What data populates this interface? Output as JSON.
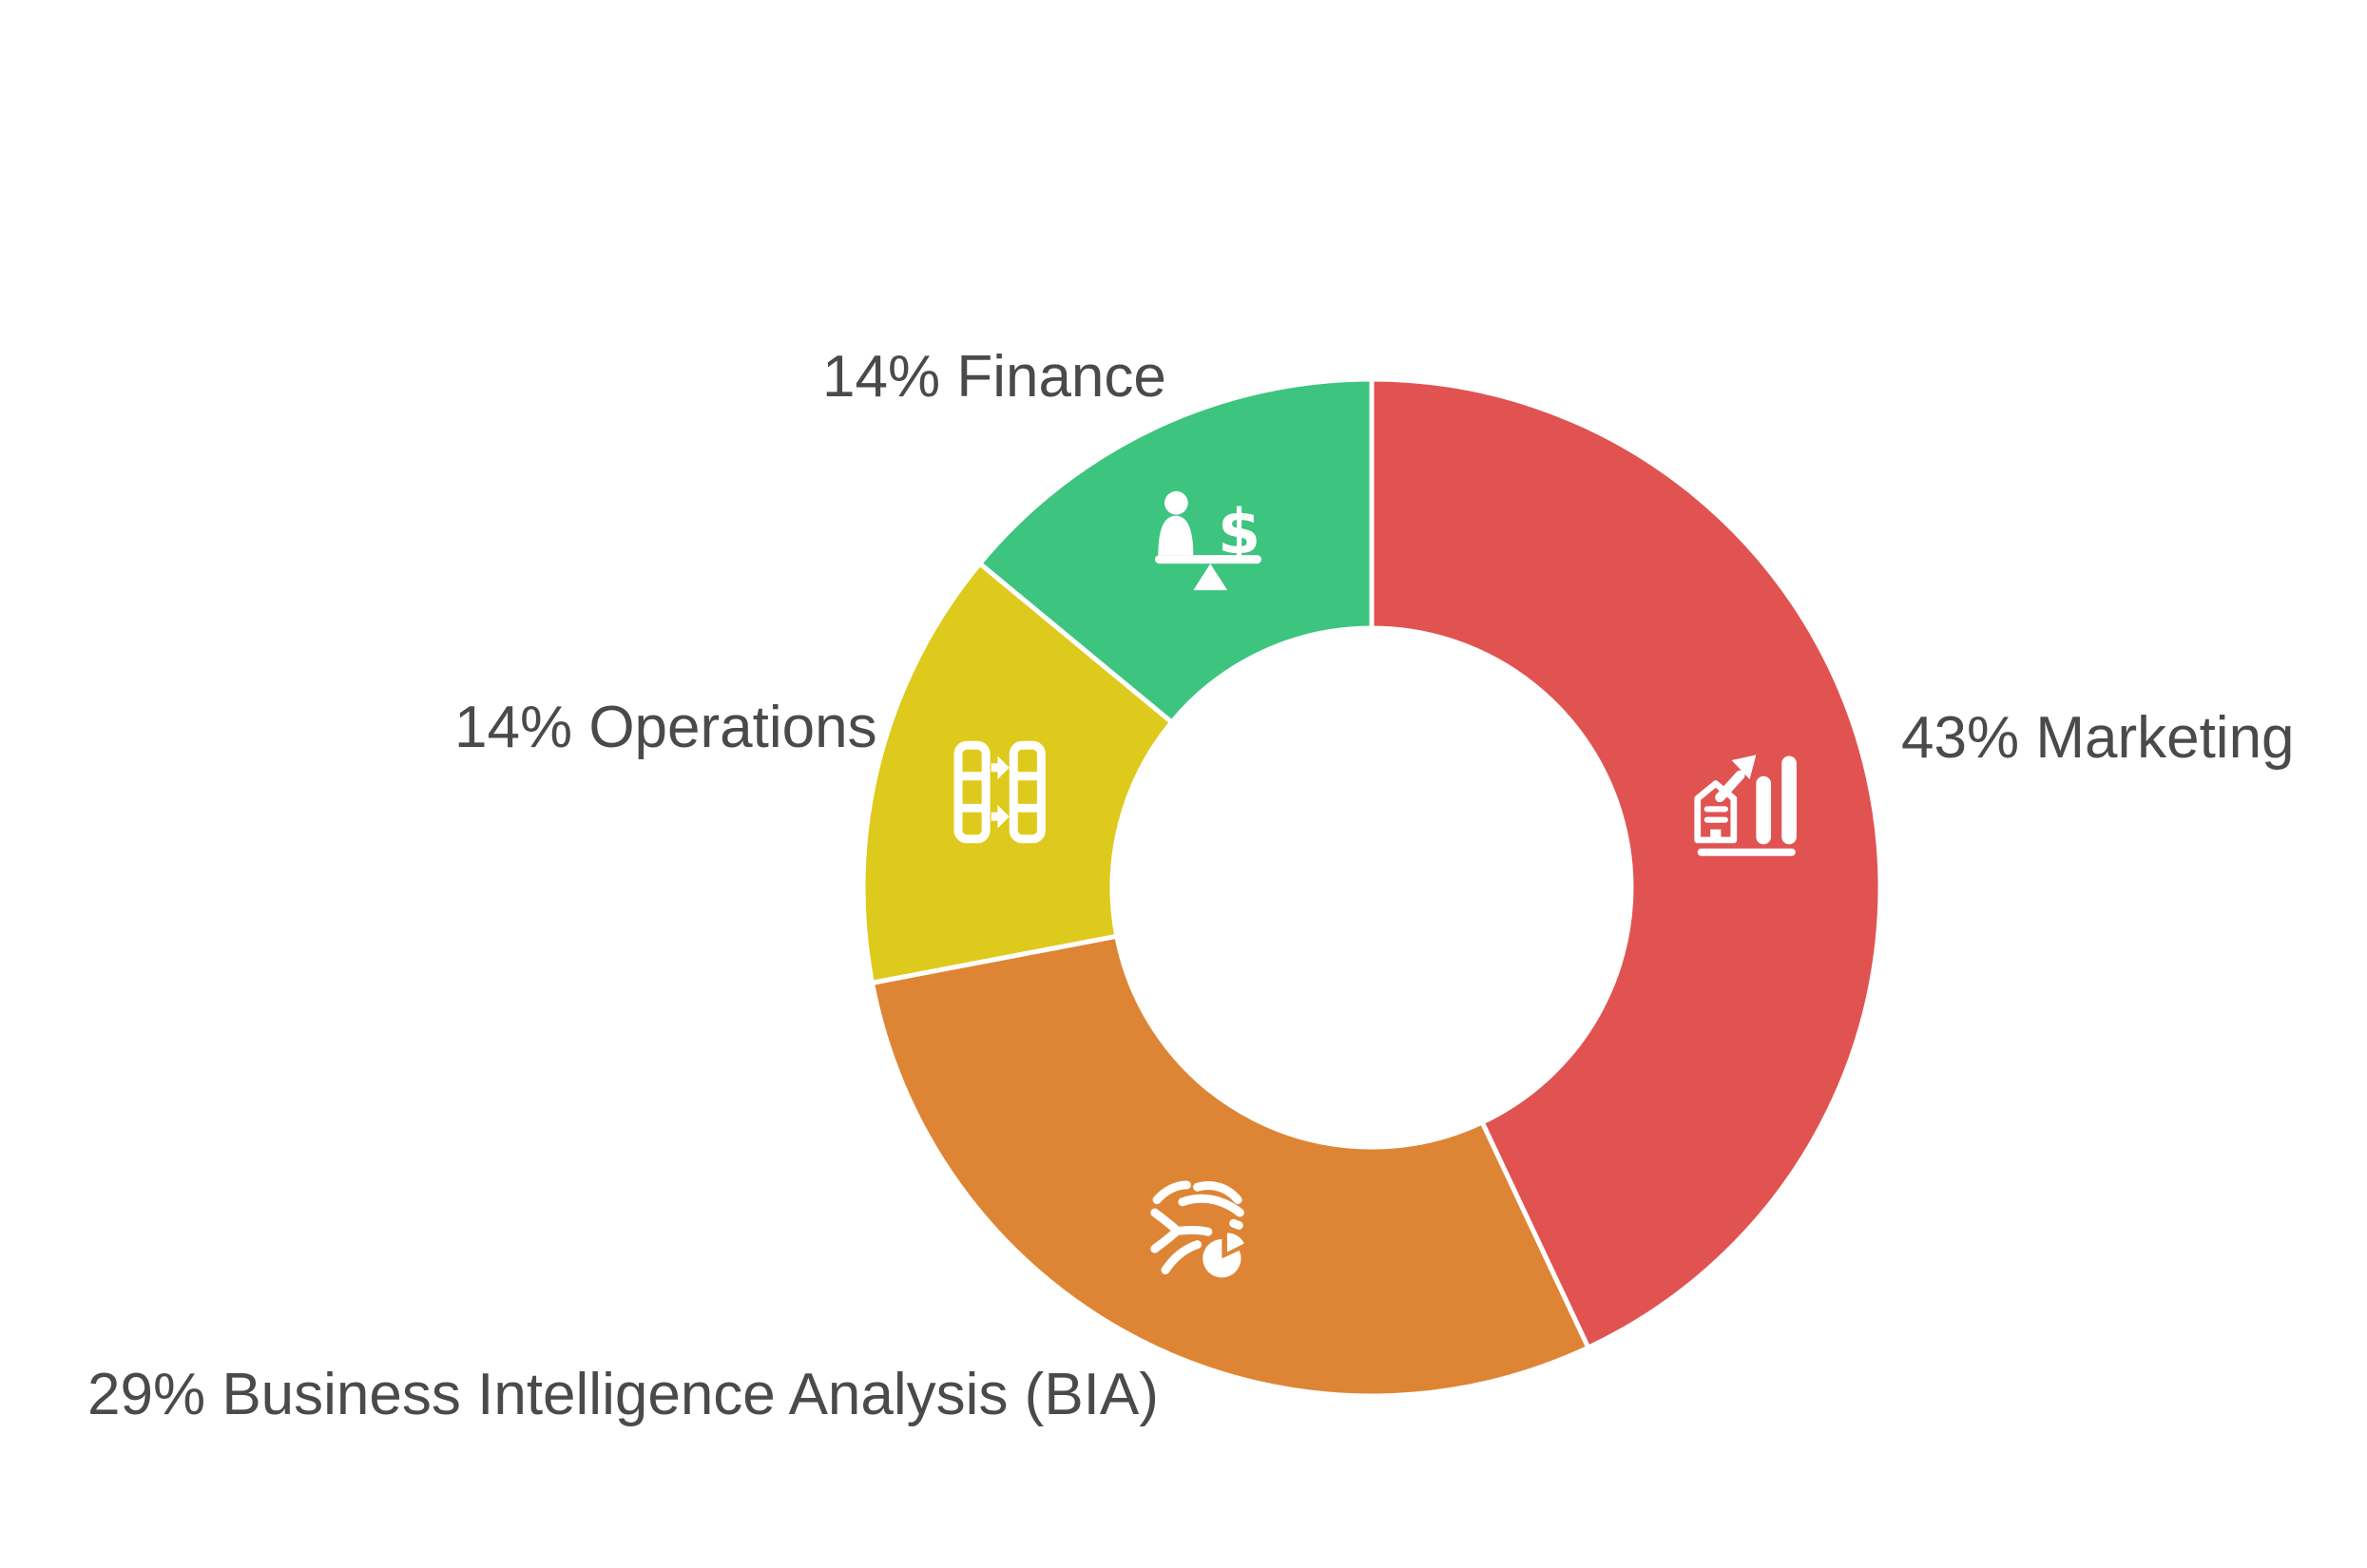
{
  "page": {
    "background_color": "#ffffff",
    "text_color": "#4a4a4a"
  },
  "chart_data": {
    "type": "pie",
    "variant": "donut",
    "direction": "clockwise",
    "start_angle_deg": 0,
    "donut_hole_ratio": 0.51,
    "grid": false,
    "legend_position": "outside-labels",
    "unit": "%",
    "categories": [
      "Marketing",
      "Business Intelligence Analysis (BIA)",
      "Operations",
      "Finance"
    ],
    "values": [
      43,
      29,
      14,
      14
    ],
    "segments": [
      {
        "name": "Marketing",
        "value": 43,
        "label": "43% Marketing",
        "color": "#e05351",
        "icon": "bar-chart-growth-icon"
      },
      {
        "name": "Business Intelligence Analysis (BIA)",
        "value": 29,
        "label": "29% Business Intelligence Analysis (BIA)",
        "color": "#de8535",
        "icon": "data-flow-pie-icon"
      },
      {
        "name": "Operations",
        "value": 14,
        "label": "14% Operations",
        "color": "#deca1d",
        "icon": "data-transfer-columns-icon"
      },
      {
        "name": "Finance",
        "value": 14,
        "label": "14% Finance",
        "color": "#3dc47f",
        "icon": "balance-person-dollar-icon"
      }
    ]
  }
}
